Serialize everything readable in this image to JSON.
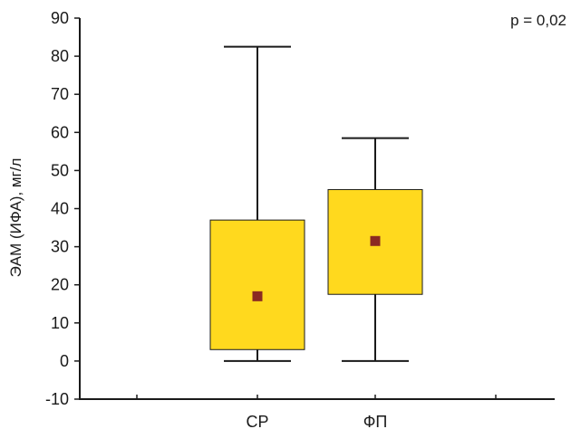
{
  "chart_data": {
    "type": "box",
    "ylabel": "ЭАМ (ИФА), мг/л",
    "xlabel": "",
    "ylim": [
      -10,
      90
    ],
    "y_ticks": [
      90,
      80,
      70,
      60,
      50,
      40,
      30,
      20,
      10,
      0,
      -10
    ],
    "categories": [
      "СР",
      "ФП"
    ],
    "boxes": [
      {
        "category": "СР",
        "min": 0,
        "q1": 3,
        "median": 17,
        "q3": 37,
        "max": 82.5
      },
      {
        "category": "ФП",
        "min": 0,
        "q1": 17.5,
        "median": 31.5,
        "q3": 45,
        "max": 58.5
      }
    ],
    "annotation": "p = 0,02",
    "grid": false,
    "colors": {
      "box_fill": "#FFD91E",
      "marker": "#8B2A22",
      "line": "#1a1a1a"
    }
  }
}
